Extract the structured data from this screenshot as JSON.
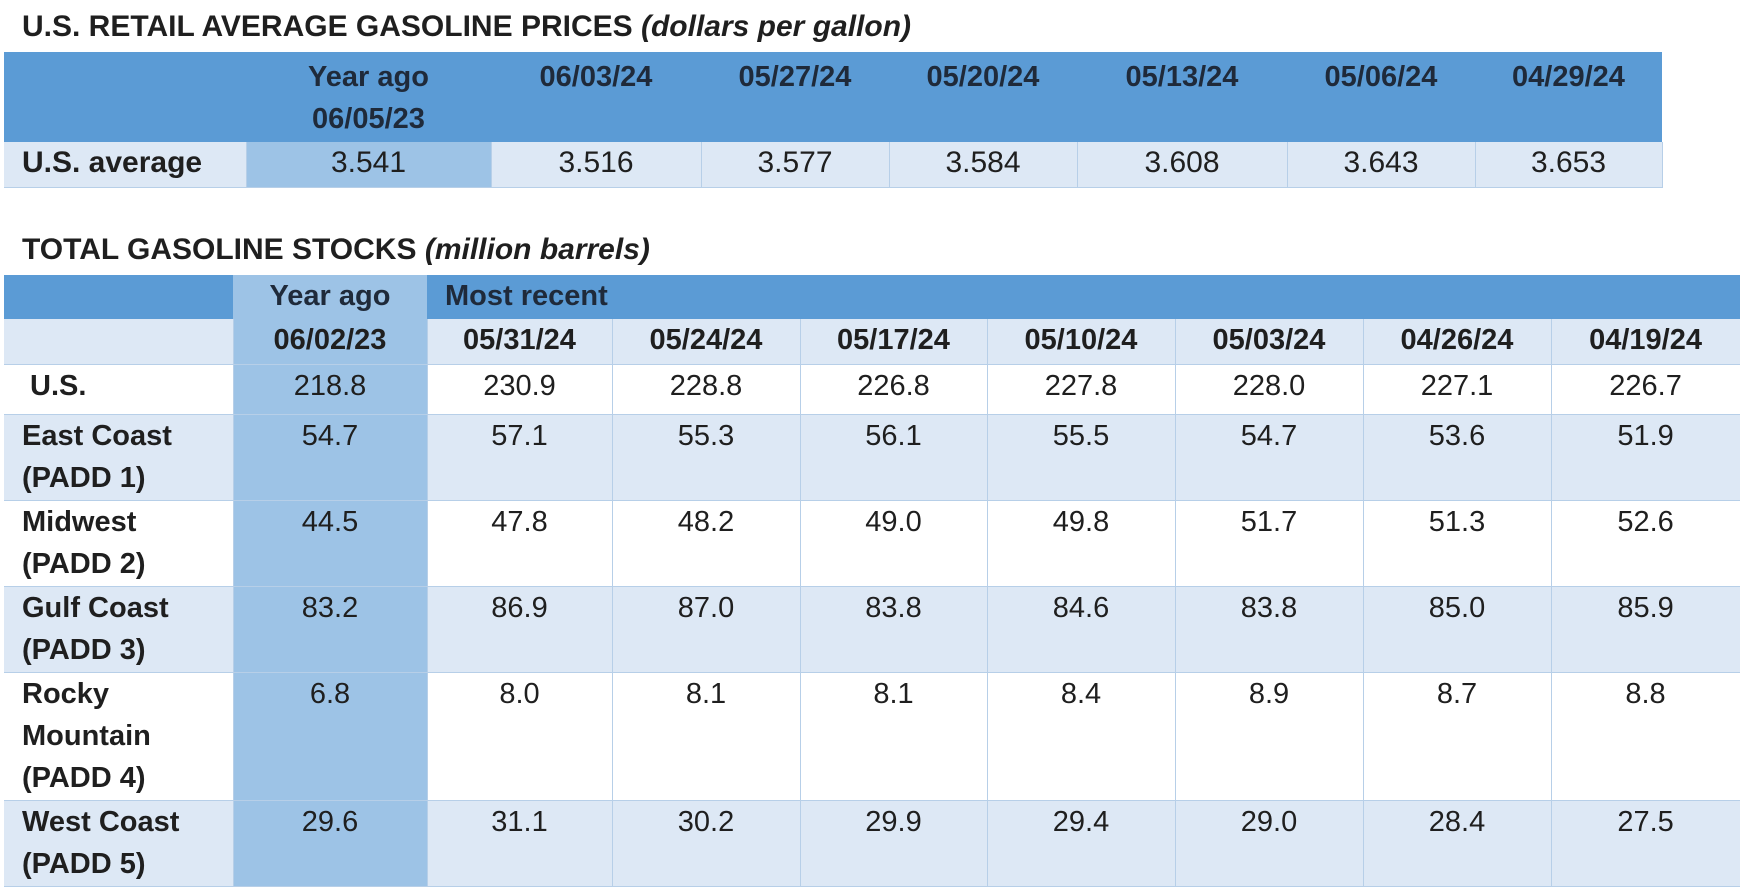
{
  "retail": {
    "title_main": "U.S. RETAIL AVERAGE GASOLINE PRICES",
    "title_unit": "(dollars per gallon)",
    "year_ago_label": "Year ago",
    "year_ago_date": "06/05/23",
    "dates": [
      "06/03/24",
      "05/27/24",
      "05/20/24",
      "05/13/24",
      "05/06/24",
      "04/29/24"
    ],
    "row_label": "U.S. average",
    "year_ago_value": "3.541",
    "values": [
      "3.516",
      "3.577",
      "3.584",
      "3.608",
      "3.643",
      "3.653"
    ]
  },
  "stocks": {
    "title_main": "TOTAL GASOLINE STOCKS",
    "title_unit": "(million barrels)",
    "year_ago_label": "Year ago",
    "most_recent_label": "Most recent",
    "year_ago_date": "06/02/23",
    "dates": [
      "05/31/24",
      "05/24/24",
      "05/17/24",
      "05/10/24",
      "05/03/24",
      "04/26/24",
      "04/19/24"
    ],
    "rows": [
      {
        "label": "U.S.",
        "year_ago": "218.8",
        "values": [
          "230.9",
          "228.8",
          "226.8",
          "227.8",
          "228.0",
          "227.1",
          "226.7"
        ]
      },
      {
        "label": "East Coast (PADD 1)",
        "year_ago": "54.7",
        "values": [
          "57.1",
          "55.3",
          "56.1",
          "55.5",
          "54.7",
          "53.6",
          "51.9"
        ]
      },
      {
        "label": "Midwest (PADD 2)",
        "year_ago": "44.5",
        "values": [
          "47.8",
          "48.2",
          "49.0",
          "49.8",
          "51.7",
          "51.3",
          "52.6"
        ]
      },
      {
        "label": "Gulf Coast (PADD 3)",
        "year_ago": "83.2",
        "values": [
          "86.9",
          "87.0",
          "83.8",
          "84.6",
          "83.8",
          "85.0",
          "85.9"
        ]
      },
      {
        "label": "Rocky Mountain (PADD 4)",
        "year_ago": "6.8",
        "values": [
          "8.0",
          "8.1",
          "8.1",
          "8.4",
          "8.9",
          "8.7",
          "8.8"
        ]
      },
      {
        "label": "West Coast (PADD 5)",
        "year_ago": "29.6",
        "values": [
          "31.1",
          "30.2",
          "29.9",
          "29.4",
          "29.0",
          "28.4",
          "27.5"
        ]
      }
    ]
  }
}
